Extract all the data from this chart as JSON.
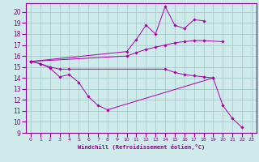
{
  "bg_color": "#ceeaea",
  "grid_color": "#aacccc",
  "line_color": "#aa00aa",
  "marker_color": "#aa00aa",
  "xlabel": "Windchill (Refroidissement éolien,°C)",
  "xlim": [
    -0.5,
    23.5
  ],
  "ylim": [
    9,
    20.8
  ],
  "yticks": [
    9,
    10,
    11,
    12,
    13,
    14,
    15,
    16,
    17,
    18,
    19,
    20
  ],
  "xticks": [
    0,
    1,
    2,
    3,
    4,
    5,
    6,
    7,
    8,
    9,
    10,
    11,
    12,
    13,
    14,
    15,
    16,
    17,
    18,
    19,
    20,
    21,
    22,
    23
  ],
  "series": [
    {
      "x": [
        0,
        1,
        2,
        3,
        4,
        5,
        6,
        7,
        8,
        19,
        20,
        21,
        22
      ],
      "y": [
        15.5,
        15.3,
        14.9,
        14.1,
        14.3,
        13.6,
        12.3,
        11.5,
        11.1,
        14.0,
        11.5,
        10.3,
        9.5
      ]
    },
    {
      "x": [
        0,
        1,
        2,
        3,
        4,
        14,
        15,
        16,
        17,
        18,
        19
      ],
      "y": [
        15.5,
        15.3,
        15.0,
        14.8,
        14.8,
        14.8,
        14.5,
        14.3,
        14.2,
        14.1,
        14.0
      ]
    },
    {
      "x": [
        0,
        10,
        11,
        12,
        13,
        14,
        15,
        16,
        17,
        18
      ],
      "y": [
        15.5,
        16.4,
        17.5,
        18.8,
        18.0,
        20.5,
        18.8,
        18.5,
        19.3,
        19.2
      ]
    },
    {
      "x": [
        0,
        10,
        11,
        12,
        13,
        14,
        15,
        16,
        17,
        18,
        20
      ],
      "y": [
        15.5,
        16.0,
        16.3,
        16.6,
        16.8,
        17.0,
        17.2,
        17.3,
        17.4,
        17.4,
        17.3
      ]
    }
  ]
}
